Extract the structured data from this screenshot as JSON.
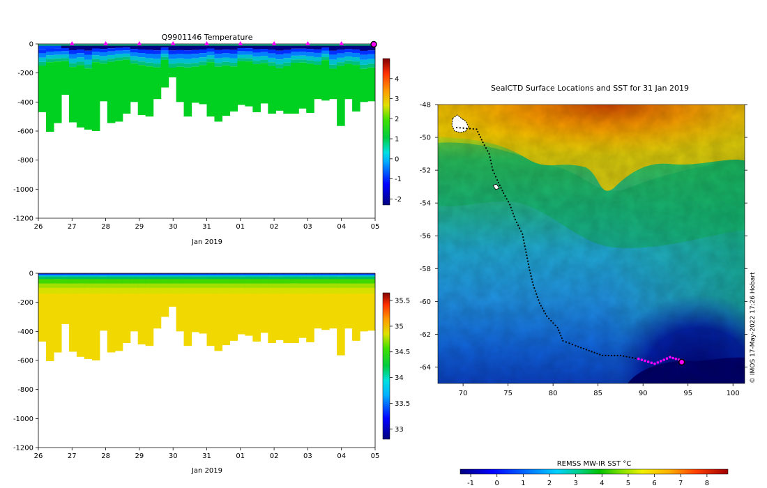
{
  "credit": "© IMOS 17-May-2022 17:26 Hobart",
  "chart_data": [
    {
      "type": "heatmap",
      "title": "Q9901146  Temperature",
      "xlabel": "Jan 2019",
      "ylabel": "",
      "x_ticks": [
        "26",
        "27",
        "28",
        "29",
        "30",
        "31",
        "01",
        "02",
        "03",
        "04",
        "05"
      ],
      "y_ticks": [
        0,
        -200,
        -400,
        -600,
        -800,
        -1000,
        -1200
      ],
      "ylim": [
        -1200,
        0
      ],
      "colorbar": {
        "ticks": [
          4,
          3,
          2,
          1,
          0,
          -1,
          -2
        ],
        "range": [
          -2.3,
          5.0
        ]
      },
      "profile_bottom_depths": [
        470,
        605,
        545,
        350,
        540,
        575,
        590,
        600,
        395,
        545,
        535,
        480,
        400,
        490,
        500,
        380,
        300,
        230,
        400,
        500,
        405,
        415,
        500,
        535,
        495,
        465,
        420,
        430,
        470,
        410,
        480,
        460,
        480,
        480,
        445,
        475,
        380,
        390,
        380,
        565,
        380,
        465,
        400,
        395
      ],
      "surface_markers_days": [
        1,
        2,
        3,
        4,
        5,
        6,
        7,
        8,
        9
      ],
      "last_position_marker_day": 10
    },
    {
      "type": "heatmap",
      "title": "",
      "xlabel": "Jan 2019",
      "ylabel": "",
      "x_ticks": [
        "26",
        "27",
        "28",
        "29",
        "30",
        "31",
        "01",
        "02",
        "03",
        "04",
        "05"
      ],
      "y_ticks": [
        0,
        -200,
        -400,
        -600,
        -800,
        -1000,
        -1200
      ],
      "ylim": [
        -1200,
        0
      ],
      "colorbar": {
        "ticks": [
          35.5,
          35,
          34.5,
          34,
          33.5,
          33
        ],
        "range": [
          32.8,
          35.65
        ]
      },
      "profile_bottom_depths": [
        470,
        605,
        545,
        350,
        540,
        575,
        590,
        600,
        395,
        545,
        535,
        480,
        400,
        490,
        500,
        380,
        300,
        230,
        400,
        500,
        405,
        415,
        500,
        535,
        495,
        465,
        420,
        430,
        470,
        410,
        480,
        460,
        480,
        480,
        445,
        475,
        380,
        390,
        380,
        565,
        380,
        465,
        400,
        395
      ]
    },
    {
      "type": "map",
      "title": "SealCTD Surface Locations and SST for 31 Jan 2019",
      "xlabel": "",
      "ylabel": "",
      "x_ticks": [
        70,
        75,
        80,
        85,
        90,
        95,
        100
      ],
      "y_ticks": [
        -48,
        -50,
        -52,
        -54,
        -56,
        -58,
        -60,
        -62,
        -64
      ],
      "xlim": [
        67.2,
        101.3
      ],
      "ylim": [
        -65,
        -48
      ],
      "track": [
        [
          69.3,
          -49.4
        ],
        [
          71.5,
          -49.5
        ],
        [
          72.2,
          -50.3
        ],
        [
          72.9,
          -51.0
        ],
        [
          73.3,
          -52.0
        ],
        [
          73.8,
          -52.6
        ],
        [
          74.5,
          -53.4
        ],
        [
          75.2,
          -54.1
        ],
        [
          75.8,
          -55.0
        ],
        [
          76.6,
          -55.9
        ],
        [
          77.0,
          -57.0
        ],
        [
          77.4,
          -58.1
        ],
        [
          77.8,
          -59.0
        ],
        [
          78.5,
          -60.1
        ],
        [
          79.3,
          -60.9
        ],
        [
          80.5,
          -61.6
        ],
        [
          81.1,
          -62.4
        ],
        [
          82.5,
          -62.7
        ],
        [
          84.0,
          -63.0
        ],
        [
          85.5,
          -63.3
        ],
        [
          87.5,
          -63.3
        ],
        [
          89.5,
          -63.5
        ],
        [
          91.3,
          -63.8
        ],
        [
          93.0,
          -63.4
        ],
        [
          94.3,
          -63.6
        ]
      ],
      "last_position": [
        94.3,
        -63.7
      ],
      "colorbar_label": "REMSS MW-IR SST °C",
      "colorbar_ticks": [
        -1,
        0,
        1,
        2,
        3,
        4,
        5,
        6,
        7,
        8
      ],
      "colorbar_range": [
        -1.4,
        8.8
      ]
    }
  ]
}
